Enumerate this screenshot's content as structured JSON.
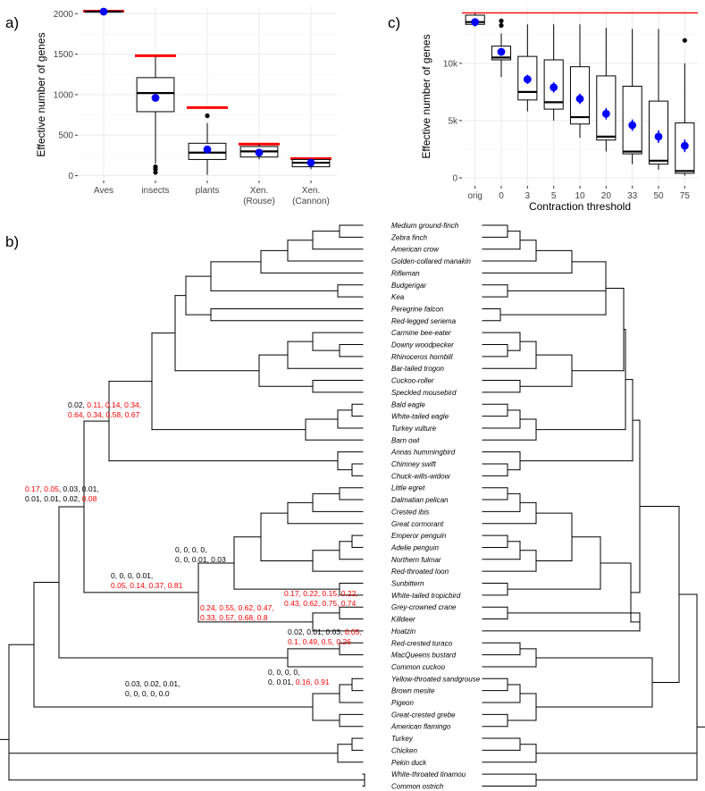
{
  "figure": {
    "panels": [
      "a)",
      "b)",
      "c)"
    ]
  },
  "chart_data": [
    {
      "panel": "a)",
      "type": "box",
      "ylabel": "Effective number of genes",
      "xlabel": "",
      "ylim": [
        -60,
        2080
      ],
      "yticks": [
        0,
        500,
        1000,
        1500,
        2000
      ],
      "categories": [
        "Aves",
        "insects",
        "plants",
        "Xen.\n(Rouse)",
        "Xen.\n(Cannon)"
      ],
      "boxes": [
        {
          "q1": 2020,
          "median": 2025,
          "q3": 2030,
          "whisker_low": 2020,
          "whisker_high": 2030,
          "outliers": []
        },
        {
          "q1": 790,
          "median": 1020,
          "q3": 1210,
          "whisker_low": 150,
          "whisker_high": 1470,
          "outliers": [
            110,
            80,
            40
          ]
        },
        {
          "q1": 200,
          "median": 285,
          "q3": 400,
          "whisker_low": 10,
          "whisker_high": 650,
          "outliers": [
            740
          ]
        },
        {
          "q1": 230,
          "median": 300,
          "q3": 360,
          "whisker_low": 200,
          "whisker_high": 390,
          "outliers": []
        },
        {
          "q1": 110,
          "median": 160,
          "q3": 200,
          "whisker_low": 80,
          "whisker_high": 210,
          "outliers": []
        }
      ],
      "means": [
        2025,
        960,
        325,
        285,
        160
      ],
      "reference_lines": [
        2030,
        1480,
        840,
        390,
        210
      ],
      "colors": {
        "mean": "#0000ff",
        "reference": "#ff0000",
        "box": "#000000"
      }
    },
    {
      "panel": "c)",
      "type": "box",
      "ylabel": "Effective number of genes",
      "xlabel": "Contraction threshold",
      "ylim": [
        -700,
        14900
      ],
      "yticks": [
        0,
        5000,
        10000
      ],
      "yticklabels": [
        "0",
        "5k",
        "10k"
      ],
      "categories": [
        "orig",
        "0",
        "3",
        "5",
        "10",
        "20",
        "33",
        "50",
        "75"
      ],
      "boxes": [
        {
          "q1": 13400,
          "median": 13600,
          "q3": 14200,
          "whisker_low": 13200,
          "whisker_high": 14400,
          "outliers": []
        },
        {
          "q1": 10300,
          "median": 10500,
          "q3": 11500,
          "whisker_low": 8800,
          "whisker_high": 12600,
          "outliers": [
            13300,
            13700
          ]
        },
        {
          "q1": 6800,
          "median": 7500,
          "q3": 10600,
          "whisker_low": 5800,
          "whisker_high": 13400,
          "outliers": []
        },
        {
          "q1": 6000,
          "median": 6600,
          "q3": 10300,
          "whisker_low": 5000,
          "whisker_high": 13400,
          "outliers": []
        },
        {
          "q1": 4700,
          "median": 5300,
          "q3": 9700,
          "whisker_low": 3500,
          "whisker_high": 13400,
          "outliers": []
        },
        {
          "q1": 3300,
          "median": 3600,
          "q3": 8900,
          "whisker_low": 2300,
          "whisker_high": 13100,
          "outliers": []
        },
        {
          "q1": 2100,
          "median": 2300,
          "q3": 8000,
          "whisker_low": 1200,
          "whisker_high": 13000,
          "outliers": []
        },
        {
          "q1": 1200,
          "median": 1500,
          "q3": 6700,
          "whisker_low": 700,
          "whisker_high": 13000,
          "outliers": []
        },
        {
          "q1": 400,
          "median": 600,
          "q3": 4800,
          "whisker_low": 200,
          "whisker_high": 10000,
          "outliers": [
            12000
          ]
        }
      ],
      "means": [
        13600,
        11000,
        8600,
        7900,
        6900,
        5600,
        4600,
        3600,
        2800
      ],
      "mean_error": [
        250,
        350,
        400,
        450,
        450,
        500,
        500,
        550,
        550
      ],
      "reference_lines": [
        14400
      ],
      "colors": {
        "mean": "#0000ff",
        "reference": "#ff0000",
        "box": "#000000"
      }
    }
  ],
  "tree": {
    "taxa": [
      "Medium ground-finch",
      "Zebra finch",
      "American crow",
      "Golden-collared manakin",
      "Rifleman",
      "Budgerigar",
      "Kea",
      "Peregrine falcon",
      "Red-legged seriema",
      "Carmine bee-eater",
      "Downy woodpecker",
      "Rhinoceros hornbill",
      "Bar-tailed trogon",
      "Cuckoo-roller",
      "Speckled mousebird",
      "Bald eagle",
      "White-tailed eagle",
      "Turkey vulture",
      "Barn owl",
      "Annas hummingbird",
      "Chimney swift",
      "Chuck-wills-widow",
      "Little egret",
      "Dalmatian pelican",
      "Crested ibis",
      "Great cormorant",
      "Emperor penguin",
      "Adelie penguin",
      "Northern fulmar",
      "Red-throated loon",
      "Sunbittern",
      "White-tailed tropicbird",
      "Grey-crowned crane",
      "Killdeer",
      "Hoatzin",
      "Red-crested turaco",
      "MacQueens bustard",
      "Common cuckoo",
      "Yellow-throated sandgrouse",
      "Brown mesite",
      "Pigeon",
      "Great-crested grebe",
      "American flamingo",
      "Turkey",
      "Chicken",
      "Pekin duck",
      "White-throated tinamou",
      "Common ostrich"
    ],
    "support_labels": [
      {
        "lines": [
          [
            [
              "0.02, ",
              "#000000"
            ],
            [
              "0.11, 0.14, 0.34,",
              "#ff0000"
            ]
          ],
          [
            [
              "0.64, 0.34, 0.58, 0.67",
              "#ff0000"
            ]
          ]
        ]
      },
      {
        "lines": [
          [
            [
              "0.17, 0.05",
              "#ff0000"
            ],
            [
              ", 0.03, 0.01,",
              "#000000"
            ]
          ],
          [
            [
              "0.01, 0.01, 0.02, ",
              "#000000"
            ],
            [
              "0.08",
              "#ff0000"
            ]
          ]
        ]
      },
      {
        "lines": [
          [
            [
              "0, 0, 0, 0,",
              "#000000"
            ]
          ],
          [
            [
              "0, 0, 0.01, 0.03",
              "#000000"
            ]
          ]
        ]
      },
      {
        "lines": [
          [
            [
              "0, 0, 0, 0.01,",
              "#000000"
            ]
          ],
          [
            [
              "0.05, 0.14, 0.37, 0.81",
              "#ff0000"
            ]
          ]
        ]
      },
      {
        "lines": [
          [
            [
              "0.17, 0.22, 0.15, 0.22,",
              "#ff0000"
            ]
          ],
          [
            [
              "0.43, 0.62, 0.75, 0.74",
              "#ff0000"
            ]
          ]
        ]
      },
      {
        "lines": [
          [
            [
              "0.24, 0.55, 0.62, 0.47,",
              "#ff0000"
            ]
          ],
          [
            [
              "0.33, 0.57, 0.68, 0.8",
              "#ff0000"
            ]
          ]
        ]
      },
      {
        "lines": [
          [
            [
              "0.02, 0.01, 0.03, ",
              "#000000"
            ],
            [
              "0.05,",
              "#ff0000"
            ]
          ],
          [
            [
              "0.1, 0.49, 0.5, 0.26",
              "#ff0000"
            ]
          ]
        ]
      },
      {
        "lines": [
          [
            [
              "0, 0, 0, 0,",
              "#000000"
            ]
          ],
          [
            [
              "0, 0.01, ",
              "#000000"
            ],
            [
              "0.16, 0.91",
              "#ff0000"
            ]
          ]
        ]
      },
      {
        "lines": [
          [
            [
              "0.03, 0.02, 0.01,",
              "#000000"
            ]
          ],
          [
            [
              "0, 0, 0, 0, 0.0",
              "#000000"
            ]
          ]
        ]
      }
    ]
  }
}
